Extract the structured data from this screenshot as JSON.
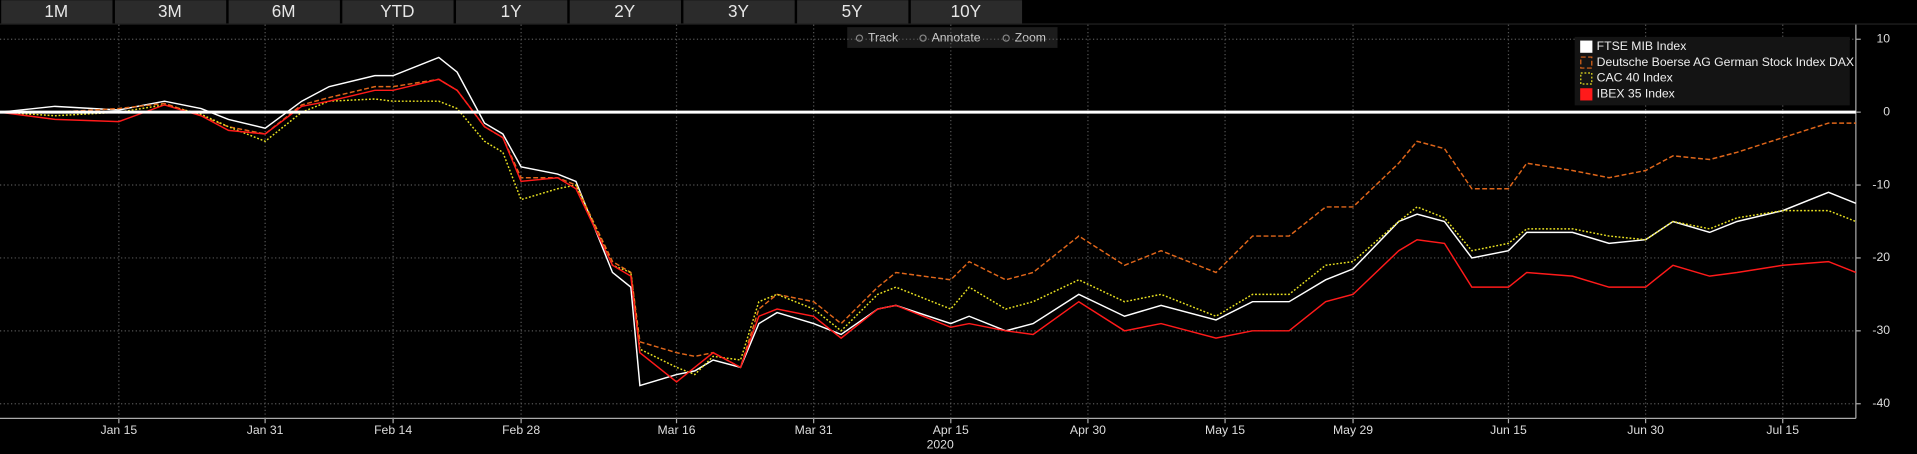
{
  "buttons": [
    "1M",
    "3M",
    "6M",
    "YTD",
    "1Y",
    "2Y",
    "3Y",
    "5Y",
    "10Y"
  ],
  "toolbar": [
    "Track",
    "Annotate",
    "Zoom"
  ],
  "chart_data": {
    "type": "line",
    "xlabel": "2020",
    "grid": true,
    "legend": "top-right",
    "zero_line": true,
    "xlim": [
      "2020-01-02",
      "2020-07-23"
    ],
    "xticks": [
      {
        "value": "2020-01-15",
        "label": "Jan 15"
      },
      {
        "value": "2020-01-31",
        "label": "Jan 31"
      },
      {
        "value": "2020-02-14",
        "label": "Feb 14"
      },
      {
        "value": "2020-02-28",
        "label": "Feb 28"
      },
      {
        "value": "2020-03-16",
        "label": "Mar 16"
      },
      {
        "value": "2020-03-31",
        "label": "Mar 31"
      },
      {
        "value": "2020-04-15",
        "label": "Apr 15"
      },
      {
        "value": "2020-04-30",
        "label": "Apr 30"
      },
      {
        "value": "2020-05-15",
        "label": "May 15"
      },
      {
        "value": "2020-05-29",
        "label": "May 29"
      },
      {
        "value": "2020-06-15",
        "label": "Jun 15"
      },
      {
        "value": "2020-06-30",
        "label": "Jun 30"
      },
      {
        "value": "2020-07-15",
        "label": "Jul 15"
      }
    ],
    "ylim": [
      -42,
      12
    ],
    "yticks": [
      10,
      0,
      -10,
      -20,
      -30,
      -40
    ],
    "x": [
      "2020-01-02",
      "2020-01-08",
      "2020-01-15",
      "2020-01-20",
      "2020-01-24",
      "2020-01-27",
      "2020-01-31",
      "2020-02-04",
      "2020-02-07",
      "2020-02-12",
      "2020-02-14",
      "2020-02-19",
      "2020-02-21",
      "2020-02-24",
      "2020-02-26",
      "2020-02-28",
      "2020-03-03",
      "2020-03-05",
      "2020-03-09",
      "2020-03-11",
      "2020-03-12",
      "2020-03-16",
      "2020-03-18",
      "2020-03-20",
      "2020-03-23",
      "2020-03-25",
      "2020-03-27",
      "2020-03-31",
      "2020-04-03",
      "2020-04-07",
      "2020-04-09",
      "2020-04-15",
      "2020-04-17",
      "2020-04-21",
      "2020-04-24",
      "2020-04-29",
      "2020-05-04",
      "2020-05-08",
      "2020-05-14",
      "2020-05-18",
      "2020-05-22",
      "2020-05-26",
      "2020-05-29",
      "2020-06-03",
      "2020-06-05",
      "2020-06-08",
      "2020-06-11",
      "2020-06-15",
      "2020-06-17",
      "2020-06-22",
      "2020-06-26",
      "2020-06-30",
      "2020-07-03",
      "2020-07-07",
      "2020-07-10",
      "2020-07-15",
      "2020-07-20",
      "2020-07-23"
    ],
    "series": [
      {
        "name": "FTSE MIB Index",
        "color": "#ffffff",
        "dash": "solid",
        "values": [
          0,
          0.8,
          0.3,
          1.5,
          0.5,
          -1,
          -2.2,
          1.5,
          3.5,
          5,
          5,
          7.5,
          5.5,
          -1.5,
          -3,
          -7.5,
          -8.5,
          -9.5,
          -22,
          -24,
          -37.5,
          -36,
          -35.5,
          -34,
          -35,
          -29,
          -27.5,
          -29,
          -30.5,
          -27,
          -26.5,
          -29,
          -28,
          -30,
          -29,
          -25,
          -28,
          -26.5,
          -28.5,
          -26,
          -26,
          -23,
          -21.5,
          -15,
          -14,
          -15,
          -20,
          -19,
          -16.5,
          -16.5,
          -18,
          -17.5,
          -15,
          -16.5,
          -15,
          -13.5,
          -11,
          -12.5
        ]
      },
      {
        "name": "Deutsche Boerse AG German Stock Index DAX",
        "color": "#e0661a",
        "dash": "dashed",
        "values": [
          0,
          0,
          0.5,
          1.2,
          -0.5,
          -2,
          -3,
          1,
          2,
          3.5,
          3.5,
          4.5,
          3,
          -2,
          -3.5,
          -9,
          -9,
          -10,
          -20.5,
          -22,
          -31.5,
          -33,
          -33.5,
          -33,
          -35,
          -27,
          -25,
          -26,
          -29,
          -24,
          -22,
          -23,
          -20.5,
          -23,
          -22,
          -17,
          -21,
          -19,
          -22,
          -17,
          -17,
          -13,
          -13,
          -7,
          -4,
          -5,
          -10.5,
          -10.5,
          -7,
          -8,
          -9,
          -8,
          -6,
          -6.5,
          -5.5,
          -3.5,
          -1.5,
          -1.5
        ]
      },
      {
        "name": "CAC 40 Index",
        "color": "#e8e020",
        "dash": "dotted",
        "values": [
          0,
          -0.5,
          0,
          1,
          -0.3,
          -2,
          -4,
          0,
          1.5,
          1.8,
          1.5,
          1.5,
          0.5,
          -4,
          -5.5,
          -12,
          -10.5,
          -10,
          -21,
          -22,
          -32.5,
          -35,
          -36,
          -33.5,
          -34,
          -26,
          -25,
          -27,
          -30,
          -25,
          -24,
          -27,
          -24,
          -27,
          -26,
          -23,
          -26,
          -25,
          -28,
          -25,
          -25,
          -21,
          -20.5,
          -15,
          -13,
          -14.5,
          -19,
          -18,
          -16,
          -16,
          -17,
          -17.5,
          -15,
          -16,
          -14.5,
          -13.5,
          -13.5,
          -15
        ]
      },
      {
        "name": "IBEX 35 Index",
        "color": "#ff1a1a",
        "dash": "solid",
        "values": [
          0,
          -1,
          -1.3,
          1,
          -0.5,
          -2.5,
          -3,
          0.8,
          1.5,
          3,
          3,
          4.5,
          3,
          -2,
          -3.5,
          -9.5,
          -9,
          -10.5,
          -21,
          -22.5,
          -33,
          -37,
          -35,
          -33,
          -35,
          -28,
          -27,
          -28,
          -31,
          -27,
          -26.5,
          -29.5,
          -29,
          -30,
          -30.5,
          -26,
          -30,
          -29,
          -31,
          -30,
          -30,
          -26,
          -25,
          -19,
          -17.5,
          -18,
          -24,
          -24,
          -22,
          -22.5,
          -24,
          -24,
          -21,
          -22.5,
          -22,
          -21,
          -20.5,
          -22
        ]
      }
    ]
  }
}
